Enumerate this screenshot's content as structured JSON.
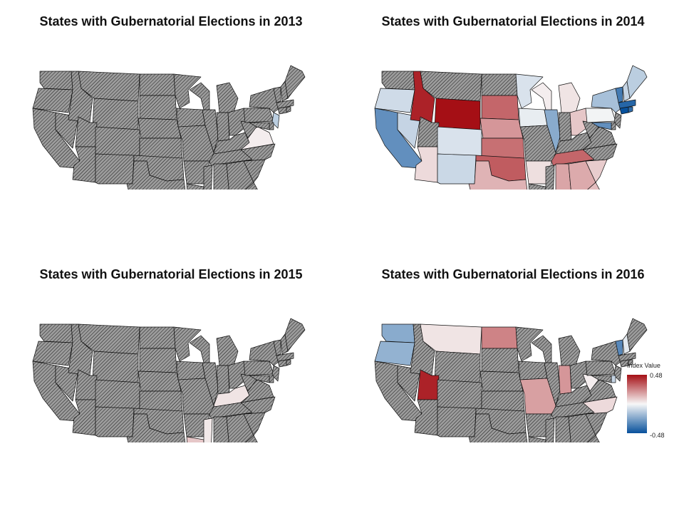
{
  "panels": [
    {
      "title": "States with Gubernatorial Elections in 2013",
      "states": [
        {
          "abbr": "NJ",
          "value": -0.12
        },
        {
          "abbr": "VA",
          "value": 0.02
        }
      ]
    },
    {
      "title": "States with Gubernatorial Elections in 2014",
      "states": [
        {
          "abbr": "OR",
          "value": -0.08
        },
        {
          "abbr": "CA",
          "value": -0.3
        },
        {
          "abbr": "NV",
          "value": -0.1
        },
        {
          "abbr": "ID",
          "value": 0.44
        },
        {
          "abbr": "WY",
          "value": 0.48
        },
        {
          "abbr": "AZ",
          "value": 0.06
        },
        {
          "abbr": "CO",
          "value": -0.06
        },
        {
          "abbr": "NM",
          "value": -0.09
        },
        {
          "abbr": "SD",
          "value": 0.3
        },
        {
          "abbr": "NE",
          "value": 0.2
        },
        {
          "abbr": "KS",
          "value": 0.28
        },
        {
          "abbr": "OK",
          "value": 0.32
        },
        {
          "abbr": "TX",
          "value": 0.14
        },
        {
          "abbr": "MN",
          "value": -0.06
        },
        {
          "abbr": "IA",
          "value": -0.03
        },
        {
          "abbr": "WI",
          "value": 0.02
        },
        {
          "abbr": "MI",
          "value": 0.04
        },
        {
          "abbr": "IL",
          "value": -0.22
        },
        {
          "abbr": "OH",
          "value": 0.1
        },
        {
          "abbr": "PA",
          "value": -0.01
        },
        {
          "abbr": "NY",
          "value": -0.16
        },
        {
          "abbr": "VT",
          "value": -0.36
        },
        {
          "abbr": "NH",
          "value": -0.1
        },
        {
          "abbr": "ME",
          "value": -0.12
        },
        {
          "abbr": "MA",
          "value": -0.42
        },
        {
          "abbr": "RI",
          "value": -0.4
        },
        {
          "abbr": "CT",
          "value": -0.48
        },
        {
          "abbr": "MD",
          "value": -0.3
        },
        {
          "abbr": "TN",
          "value": 0.3
        },
        {
          "abbr": "AR",
          "value": 0.05
        },
        {
          "abbr": "AL",
          "value": 0.17
        },
        {
          "abbr": "GA",
          "value": 0.16
        },
        {
          "abbr": "SC",
          "value": 0.09
        },
        {
          "abbr": "FL",
          "value": 0.12
        }
      ]
    },
    {
      "title": "States with Gubernatorial Elections in 2015",
      "states": [
        {
          "abbr": "KY",
          "value": 0.04
        },
        {
          "abbr": "LA",
          "value": 0.1
        },
        {
          "abbr": "MS",
          "value": 0.03
        }
      ]
    },
    {
      "title": "States with Gubernatorial Elections in 2016",
      "states": [
        {
          "abbr": "WA",
          "value": -0.22
        },
        {
          "abbr": "OR",
          "value": -0.2
        },
        {
          "abbr": "MT",
          "value": 0.04
        },
        {
          "abbr": "ND",
          "value": 0.24
        },
        {
          "abbr": "UT",
          "value": 0.44
        },
        {
          "abbr": "MO",
          "value": 0.18
        },
        {
          "abbr": "IN",
          "value": 0.2
        },
        {
          "abbr": "WV",
          "value": 0.02
        },
        {
          "abbr": "NC",
          "value": 0.06
        },
        {
          "abbr": "VT",
          "value": -0.32
        },
        {
          "abbr": "NH",
          "value": -0.04
        },
        {
          "abbr": "DE",
          "value": -0.1
        }
      ]
    }
  ],
  "legend": {
    "title": "Index Value",
    "max_label": "0.48",
    "min_label": "-0.48",
    "max": 0.48,
    "min": -0.48
  },
  "colors": {
    "no_election_fill": "#9c9c9c",
    "hatch_stroke": "#1a1a1a",
    "state_border": "#111111",
    "scale_high": "#a50f15",
    "scale_mid": "#f7f7f7",
    "scale_low": "#08519c"
  }
}
